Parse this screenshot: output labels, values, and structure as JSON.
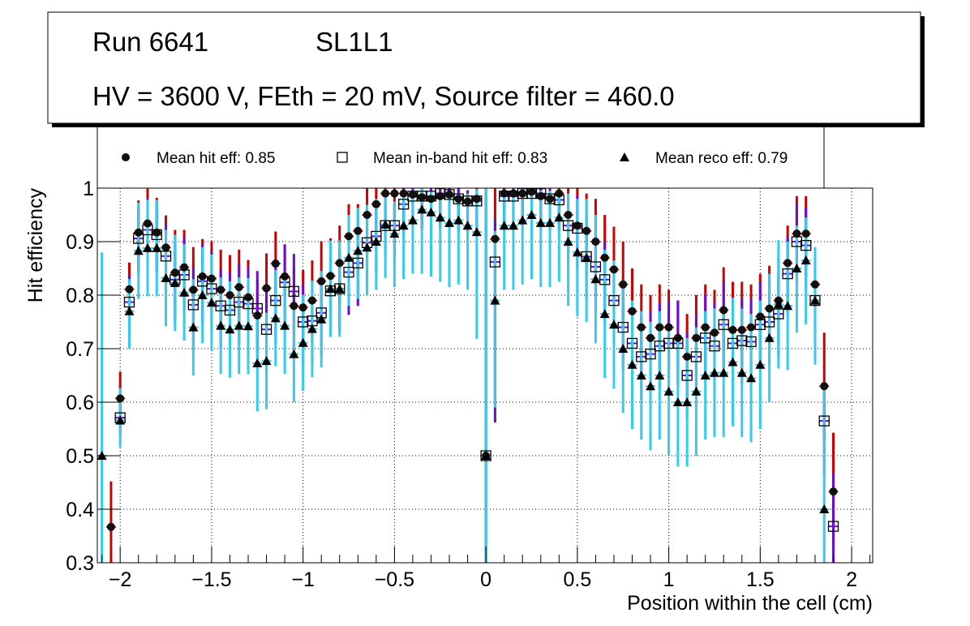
{
  "chart_data": {
    "type": "scatter",
    "title_lines": [
      "Run 6641",
      "SL1L1",
      "HV = 3600 V, FEth = 20 mV, Source filter = 460.0"
    ],
    "xlabel": "Position within the cell (cm)",
    "ylabel": "Hit efficiency",
    "xlim": [
      -2.125,
      2.115
    ],
    "ylim": [
      0.3,
      1.0
    ],
    "x_ticks": [
      -2,
      -1.5,
      -1,
      -0.5,
      0,
      0.5,
      1,
      1.5,
      2
    ],
    "x_tick_labels": [
      "−2",
      "−1.5",
      "−1",
      "−0.5",
      "0",
      "0.5",
      "1",
      "1.5",
      "2"
    ],
    "y_ticks": [
      0.3,
      0.4,
      0.5,
      0.6,
      0.7,
      0.8,
      0.9,
      1
    ],
    "y_tick_labels": [
      "0.3",
      "0.4",
      "0.5",
      "0.6",
      "0.7",
      "0.8",
      "0.9",
      "1"
    ],
    "grid": true,
    "legend_position": "top",
    "legend": [
      {
        "label": "Mean hit  eff: 0.85",
        "marker": "circle"
      },
      {
        "label": "Mean in-band hit eff: 0.83",
        "marker": "open-square"
      },
      {
        "label": "Mean reco eff: 0.79",
        "marker": "triangle"
      }
    ],
    "x": [
      -2.1,
      -2.05,
      -2.0,
      -1.95,
      -1.9,
      -1.85,
      -1.8,
      -1.75,
      -1.7,
      -1.65,
      -1.6,
      -1.55,
      -1.5,
      -1.45,
      -1.4,
      -1.35,
      -1.3,
      -1.25,
      -1.2,
      -1.15,
      -1.1,
      -1.05,
      -1.0,
      -0.95,
      -0.9,
      -0.85,
      -0.8,
      -0.75,
      -0.7,
      -0.65,
      -0.6,
      -0.55,
      -0.5,
      -0.45,
      -0.4,
      -0.35,
      -0.3,
      -0.25,
      -0.2,
      -0.15,
      -0.1,
      -0.05,
      0.0,
      0.05,
      0.1,
      0.15,
      0.2,
      0.25,
      0.3,
      0.35,
      0.4,
      0.45,
      0.5,
      0.55,
      0.6,
      0.65,
      0.7,
      0.75,
      0.8,
      0.85,
      0.9,
      0.95,
      1.0,
      1.05,
      1.1,
      1.15,
      1.2,
      1.25,
      1.3,
      1.35,
      1.4,
      1.45,
      1.5,
      1.55,
      1.6,
      1.65,
      1.7,
      1.75,
      1.8,
      1.85,
      1.9,
      1.95,
      2.0,
      2.05
    ],
    "series": [
      {
        "name": "Mean hit eff",
        "marker": "circle",
        "color": "#000000",
        "error_color": "#cc0000",
        "values": [
          null,
          0.367,
          0.607,
          0.811,
          0.917,
          0.934,
          0.917,
          0.889,
          0.842,
          0.852,
          0.81,
          0.835,
          0.831,
          0.81,
          0.8,
          0.815,
          0.796,
          0.762,
          0.813,
          0.859,
          0.835,
          0.78,
          0.777,
          0.79,
          0.826,
          0.836,
          0.86,
          0.91,
          0.92,
          0.95,
          0.97,
          0.99,
          0.99,
          0.99,
          0.988,
          0.983,
          0.98,
          0.985,
          0.988,
          0.98,
          0.975,
          0.98,
          0.5,
          0.905,
          0.99,
          0.99,
          0.99,
          0.993,
          0.985,
          0.98,
          0.99,
          0.95,
          0.93,
          0.92,
          0.9,
          0.87,
          0.848,
          0.82,
          0.77,
          0.74,
          0.72,
          0.74,
          0.74,
          0.72,
          0.685,
          0.72,
          0.74,
          0.73,
          0.772,
          0.735,
          0.735,
          0.74,
          0.76,
          0.775,
          0.79,
          0.86,
          0.915,
          0.915,
          0.82,
          0.63,
          0.433,
          null,
          null,
          null
        ],
        "err_hi": [
          null,
          0.085,
          0.05,
          0.05,
          0.06,
          0.065,
          0.065,
          0.06,
          0.08,
          0.07,
          0.08,
          0.07,
          0.07,
          0.075,
          0.075,
          0.07,
          0.07,
          0.065,
          0.065,
          0.06,
          0.06,
          0.07,
          0.07,
          0.075,
          0.075,
          0.07,
          0.07,
          0.06,
          0.05,
          0.05,
          0.04,
          0.02,
          0.02,
          0.02,
          0.02,
          0.02,
          0.02,
          0.02,
          0.02,
          0.02,
          0.02,
          0.02,
          0.5,
          0.1,
          0.02,
          0.02,
          0.02,
          0.02,
          0.02,
          0.02,
          0.02,
          0.05,
          0.07,
          0.07,
          0.08,
          0.08,
          0.08,
          0.08,
          0.08,
          0.08,
          0.08,
          0.08,
          0.07,
          0.07,
          0.08,
          0.08,
          0.08,
          0.08,
          0.08,
          0.09,
          0.09,
          0.08,
          0.08,
          0.08,
          0.08,
          0.07,
          0.07,
          0.07,
          0.05,
          0.1,
          0.11,
          null,
          null,
          null
        ],
        "err_lo": [
          null,
          0.09,
          0.05,
          0.05,
          0.07,
          0.07,
          0.07,
          0.08,
          0.08,
          0.08,
          0.08,
          0.08,
          0.08,
          0.08,
          0.08,
          0.08,
          0.08,
          0.08,
          0.08,
          0.08,
          0.08,
          0.08,
          0.08,
          0.08,
          0.08,
          0.08,
          0.08,
          0.08,
          0.08,
          0.08,
          0.07,
          0.06,
          0.06,
          0.06,
          0.06,
          0.06,
          0.06,
          0.06,
          0.06,
          0.06,
          0.06,
          0.06,
          0.5,
          0.3,
          0.06,
          0.06,
          0.06,
          0.06,
          0.06,
          0.06,
          0.06,
          0.08,
          0.08,
          0.08,
          0.08,
          0.08,
          0.08,
          0.08,
          0.08,
          0.08,
          0.08,
          0.08,
          0.08,
          0.08,
          0.08,
          0.08,
          0.08,
          0.08,
          0.08,
          0.08,
          0.08,
          0.08,
          0.08,
          0.08,
          0.08,
          0.08,
          0.08,
          0.08,
          0.08,
          0.1,
          0.1,
          null,
          null,
          null
        ]
      },
      {
        "name": "Mean in-band hit eff",
        "marker": "open-square",
        "color": "#000000",
        "error_color": "#6a0dcc",
        "values": [
          null,
          null,
          0.571,
          0.787,
          0.906,
          0.922,
          0.913,
          0.873,
          0.829,
          0.838,
          0.782,
          0.826,
          0.812,
          0.78,
          0.772,
          0.787,
          0.784,
          0.775,
          0.736,
          0.79,
          0.824,
          0.807,
          0.75,
          0.752,
          0.767,
          0.808,
          0.812,
          0.843,
          0.86,
          0.898,
          0.91,
          0.93,
          0.93,
          0.97,
          0.985,
          0.985,
          0.985,
          0.99,
          0.988,
          0.98,
          0.976,
          0.976,
          0.5,
          0.862,
          0.985,
          0.985,
          0.99,
          0.99,
          0.99,
          0.98,
          0.978,
          0.93,
          0.925,
          0.872,
          0.853,
          0.829,
          0.79,
          0.74,
          0.71,
          0.685,
          0.69,
          0.705,
          0.71,
          0.71,
          0.65,
          0.685,
          0.72,
          0.705,
          0.745,
          0.71,
          0.715,
          0.713,
          0.745,
          0.75,
          0.765,
          0.84,
          0.9,
          0.893,
          0.79,
          0.565,
          0.368,
          null,
          null,
          null
        ],
        "err_hi": [
          null,
          null,
          0.03,
          0.05,
          0.06,
          0.06,
          0.06,
          0.06,
          0.07,
          0.07,
          0.07,
          0.07,
          0.07,
          0.07,
          0.07,
          0.07,
          0.07,
          0.07,
          0.07,
          0.07,
          0.07,
          0.07,
          0.07,
          0.07,
          0.07,
          0.07,
          0.07,
          0.06,
          0.06,
          0.05,
          0.05,
          0.04,
          0.04,
          0.03,
          0.02,
          0.02,
          0.02,
          0.02,
          0.02,
          0.02,
          0.02,
          0.02,
          0.5,
          0.08,
          0.02,
          0.02,
          0.02,
          0.02,
          0.02,
          0.02,
          0.02,
          0.05,
          0.06,
          0.07,
          0.07,
          0.07,
          0.07,
          0.08,
          0.08,
          0.08,
          0.08,
          0.08,
          0.08,
          0.08,
          0.08,
          0.08,
          0.08,
          0.08,
          0.08,
          0.08,
          0.08,
          0.08,
          0.08,
          0.08,
          0.08,
          0.07,
          0.07,
          0.07,
          0.05,
          0.05,
          0.1,
          null,
          null,
          null
        ],
        "err_lo": [
          null,
          null,
          0.03,
          0.06,
          0.07,
          0.07,
          0.07,
          0.08,
          0.08,
          0.08,
          0.08,
          0.08,
          0.08,
          0.08,
          0.08,
          0.08,
          0.08,
          0.08,
          0.08,
          0.08,
          0.08,
          0.08,
          0.08,
          0.08,
          0.08,
          0.08,
          0.08,
          0.08,
          0.08,
          0.08,
          0.07,
          0.06,
          0.06,
          0.06,
          0.06,
          0.06,
          0.06,
          0.06,
          0.06,
          0.06,
          0.06,
          0.06,
          0.5,
          0.3,
          0.06,
          0.06,
          0.06,
          0.06,
          0.06,
          0.06,
          0.06,
          0.08,
          0.08,
          0.08,
          0.08,
          0.08,
          0.08,
          0.08,
          0.08,
          0.08,
          0.08,
          0.08,
          0.08,
          0.08,
          0.08,
          0.08,
          0.08,
          0.08,
          0.08,
          0.08,
          0.08,
          0.08,
          0.08,
          0.08,
          0.08,
          0.08,
          0.08,
          0.08,
          0.08,
          0.1,
          0.1,
          null,
          null,
          null
        ]
      },
      {
        "name": "Mean reco eff",
        "marker": "triangle",
        "color": "#000000",
        "error_color": "#33ccee",
        "values": [
          0.5,
          null,
          0.566,
          0.77,
          0.883,
          0.888,
          0.888,
          0.832,
          0.823,
          0.805,
          0.74,
          0.8,
          0.786,
          0.743,
          0.736,
          0.743,
          0.742,
          0.673,
          0.677,
          0.757,
          0.743,
          0.69,
          0.711,
          0.737,
          0.755,
          0.812,
          0.812,
          0.87,
          0.883,
          0.889,
          0.9,
          0.932,
          0.915,
          0.93,
          0.94,
          0.96,
          0.955,
          0.945,
          0.935,
          0.94,
          0.93,
          0.918,
          0.5,
          0.79,
          0.93,
          0.93,
          0.94,
          0.95,
          0.935,
          0.935,
          0.945,
          0.9,
          0.88,
          0.87,
          0.83,
          0.765,
          0.745,
          0.7,
          0.67,
          0.65,
          0.63,
          0.65,
          0.62,
          0.6,
          0.6,
          0.62,
          0.65,
          0.655,
          0.655,
          0.675,
          0.655,
          0.645,
          0.67,
          0.72,
          0.783,
          0.78,
          0.85,
          0.865,
          0.79,
          0.4,
          null,
          null,
          null
        ],
        "err_hi": [
          0.38,
          null,
          0.06,
          0.06,
          0.09,
          0.09,
          0.09,
          0.09,
          0.09,
          0.09,
          0.09,
          0.09,
          0.09,
          0.09,
          0.09,
          0.09,
          0.09,
          0.09,
          0.09,
          0.09,
          0.09,
          0.09,
          0.09,
          0.09,
          0.09,
          0.09,
          0.09,
          0.08,
          0.08,
          0.08,
          0.08,
          0.06,
          0.06,
          0.06,
          0.05,
          0.04,
          0.04,
          0.04,
          0.05,
          0.05,
          0.06,
          0.08,
          0.5,
          0.13,
          0.06,
          0.06,
          0.06,
          0.05,
          0.06,
          0.06,
          0.05,
          0.09,
          0.1,
          0.11,
          0.12,
          0.12,
          0.12,
          0.12,
          0.12,
          0.12,
          0.12,
          0.12,
          0.12,
          0.12,
          0.12,
          0.12,
          0.12,
          0.12,
          0.12,
          0.12,
          0.12,
          0.12,
          0.12,
          0.12,
          0.12,
          0.12,
          0.08,
          0.08,
          0.1,
          0.23,
          null,
          null,
          null
        ],
        "err_lo": [
          0.2,
          null,
          0.05,
          0.07,
          0.09,
          0.09,
          0.09,
          0.09,
          0.09,
          0.09,
          0.09,
          0.09,
          0.09,
          0.09,
          0.09,
          0.09,
          0.09,
          0.09,
          0.09,
          0.09,
          0.09,
          0.09,
          0.09,
          0.09,
          0.09,
          0.09,
          0.09,
          0.09,
          0.09,
          0.09,
          0.09,
          0.1,
          0.1,
          0.1,
          0.1,
          0.12,
          0.12,
          0.12,
          0.12,
          0.12,
          0.12,
          0.2,
          0.5,
          0.2,
          0.12,
          0.12,
          0.12,
          0.12,
          0.12,
          0.12,
          0.12,
          0.12,
          0.12,
          0.12,
          0.12,
          0.12,
          0.12,
          0.12,
          0.12,
          0.12,
          0.12,
          0.12,
          0.12,
          0.12,
          0.12,
          0.12,
          0.12,
          0.12,
          0.12,
          0.12,
          0.12,
          0.12,
          0.12,
          0.12,
          0.12,
          0.12,
          0.12,
          0.12,
          0.12,
          0.1,
          null,
          null,
          null
        ]
      }
    ]
  }
}
